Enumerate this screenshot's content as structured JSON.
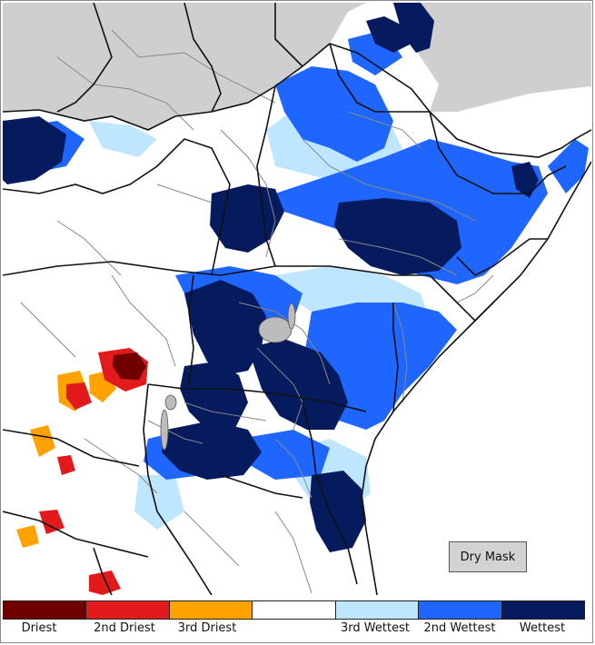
{
  "map": {
    "colors": {
      "no_data": "#cfcfcf",
      "land": "#ffffff",
      "border": "#111111",
      "admin": "#888888",
      "driest": "#6e0000",
      "second_driest": "#e31a1c",
      "third_driest": "#ffa200",
      "normal": "#ffffff",
      "third_wettest": "#bfe6ff",
      "second_wettest": "#1f66ff",
      "wettest": "#061a5e"
    }
  },
  "dry_mask": {
    "label": "Dry Mask"
  },
  "legend": {
    "categories": [
      {
        "label": "Driest",
        "color": "#6e0000"
      },
      {
        "label": "2nd Driest",
        "color": "#e31a1c"
      },
      {
        "label": "3rd Driest",
        "color": "#ffa200"
      },
      {
        "label": "",
        "color": "#ffffff"
      },
      {
        "label": "3rd Wettest",
        "color": "#bfe6ff"
      },
      {
        "label": "2nd Wettest",
        "color": "#1f66ff"
      },
      {
        "label": "Wettest",
        "color": "#061a5e"
      }
    ]
  }
}
